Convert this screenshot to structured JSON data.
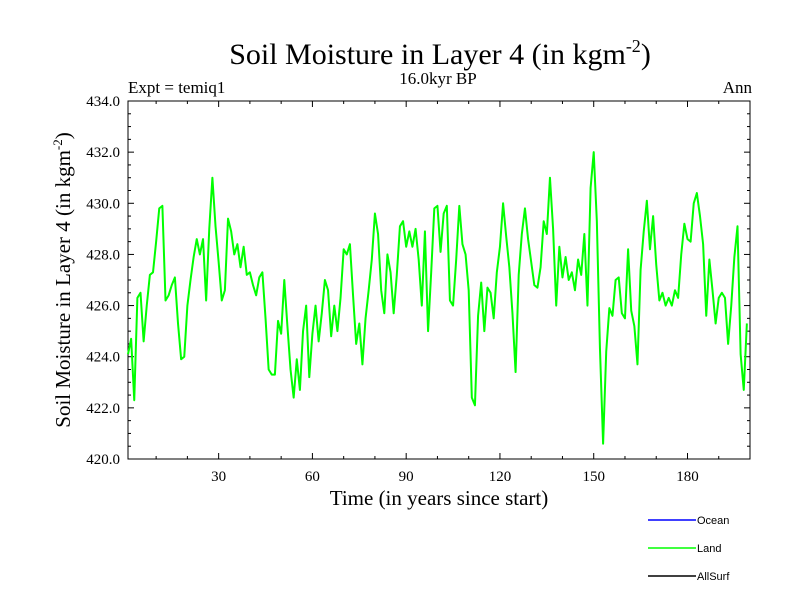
{
  "chart_data": {
    "type": "line",
    "title": "Soil Moisture in Layer 4 (in kgm",
    "title_sup": "-2",
    "title_close": ")",
    "subtitle": "16.0kyr BP",
    "left_label": "Expt = temiq1",
    "right_label": "Ann",
    "xlabel": "Time (in years since start)",
    "ylabel": "Soil Moisture in Layer 4 (in kgm",
    "ylabel_sup": "-2",
    "ylabel_close": ")",
    "xlim": [
      1,
      200
    ],
    "ylim": [
      420,
      434
    ],
    "x_ticks": [
      30,
      60,
      90,
      120,
      150,
      180
    ],
    "y_ticks": [
      420,
      422,
      424,
      426,
      428,
      430,
      432,
      434
    ],
    "y_tick_labels": [
      "420.0",
      "422.0",
      "424.0",
      "426.0",
      "428.0",
      "430.0",
      "432.0",
      "434.0"
    ],
    "legend": [
      {
        "name": "Ocean",
        "color": "#0000ff"
      },
      {
        "name": "Land",
        "color": "#00ff00"
      },
      {
        "name": "AllSurf",
        "color": "#000000"
      }
    ],
    "series": [
      {
        "name": "Land",
        "color": "#00ff00",
        "x_start": 1,
        "values": [
          424.1,
          424.7,
          422.3,
          426.3,
          426.5,
          424.6,
          426.0,
          427.2,
          427.3,
          428.5,
          429.8,
          429.9,
          426.2,
          426.4,
          426.8,
          427.1,
          425.3,
          423.9,
          424.0,
          426.0,
          427.0,
          427.9,
          428.6,
          428.0,
          428.6,
          426.2,
          429.0,
          431.0,
          429.1,
          427.7,
          426.2,
          426.6,
          429.4,
          428.9,
          428.0,
          428.4,
          427.5,
          428.3,
          427.2,
          427.3,
          426.8,
          426.4,
          427.1,
          427.3,
          425.5,
          423.5,
          423.3,
          423.3,
          425.4,
          424.9,
          427.0,
          425.2,
          423.5,
          422.4,
          423.9,
          422.7,
          425.0,
          426.0,
          423.2,
          424.9,
          426.0,
          424.6,
          425.7,
          427.0,
          426.6,
          424.8,
          426.0,
          425.0,
          426.3,
          428.2,
          428.0,
          428.4,
          426.4,
          424.5,
          425.3,
          423.7,
          425.5,
          426.6,
          427.8,
          429.6,
          428.8,
          426.6,
          425.7,
          428.0,
          427.3,
          425.7,
          427.2,
          429.1,
          429.3,
          428.3,
          428.9,
          428.3,
          429.0,
          427.8,
          426.0,
          428.9,
          425.0,
          427.3,
          429.8,
          429.9,
          428.1,
          429.6,
          429.9,
          426.2,
          426.0,
          427.8,
          429.9,
          428.4,
          428.0,
          426.6,
          422.4,
          422.1,
          425.6,
          426.9,
          425.0,
          426.7,
          426.5,
          425.5,
          427.3,
          428.3,
          430.0,
          428.7,
          427.5,
          425.7,
          423.4,
          427.2,
          428.8,
          429.8,
          428.6,
          427.7,
          426.8,
          426.7,
          427.5,
          429.3,
          428.8,
          431.0,
          429.0,
          426.0,
          428.3,
          427.1,
          427.9,
          427.0,
          427.3,
          426.6,
          427.8,
          427.2,
          428.8,
          426.0,
          430.6,
          432.0,
          429.3,
          424.3,
          420.6,
          424.2,
          425.9,
          425.6,
          427.0,
          427.1,
          425.7,
          425.5,
          428.2,
          425.8,
          425.2,
          423.7,
          427.4,
          428.9,
          430.1,
          428.2,
          429.5,
          427.6,
          426.2,
          426.5,
          426.0,
          426.3,
          426.0,
          426.6,
          426.3,
          428.0,
          429.2,
          428.6,
          428.5,
          430.0,
          430.4,
          429.5,
          428.4,
          425.6,
          427.8,
          426.6,
          425.3,
          426.3,
          426.5,
          426.3,
          424.5,
          426.0,
          427.9,
          429.1,
          424.1,
          422.7,
          425.3
        ]
      }
    ]
  }
}
